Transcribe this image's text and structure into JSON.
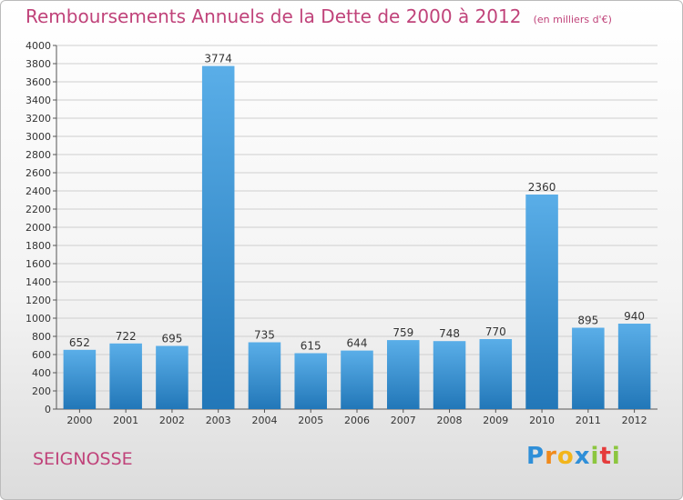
{
  "chart_data": {
    "type": "bar",
    "title": "Remboursements Annuels de la Dette de 2000 à 2012",
    "subtitle": "(en milliers d'€)",
    "categories": [
      "2000",
      "2001",
      "2002",
      "2003",
      "2004",
      "2005",
      "2006",
      "2007",
      "2008",
      "2009",
      "2010",
      "2011",
      "2012"
    ],
    "values": [
      652,
      722,
      695,
      3774,
      735,
      615,
      644,
      759,
      748,
      770,
      2360,
      895,
      940
    ],
    "ylim": [
      0,
      4000
    ],
    "ytick_step": 200,
    "grid": true,
    "bar_color_top": "#5aaee8",
    "bar_color_bottom": "#2277b8"
  },
  "location": "SEIGNOSSE",
  "brand": {
    "letters": [
      "P",
      "r",
      "o",
      "x",
      "i",
      "t",
      "i"
    ],
    "colors": [
      "#2f8fd8",
      "#f08a1c",
      "#f2b51b",
      "#2f8fd8",
      "#8cc63f",
      "#e53c3c",
      "#8cc63f"
    ]
  }
}
